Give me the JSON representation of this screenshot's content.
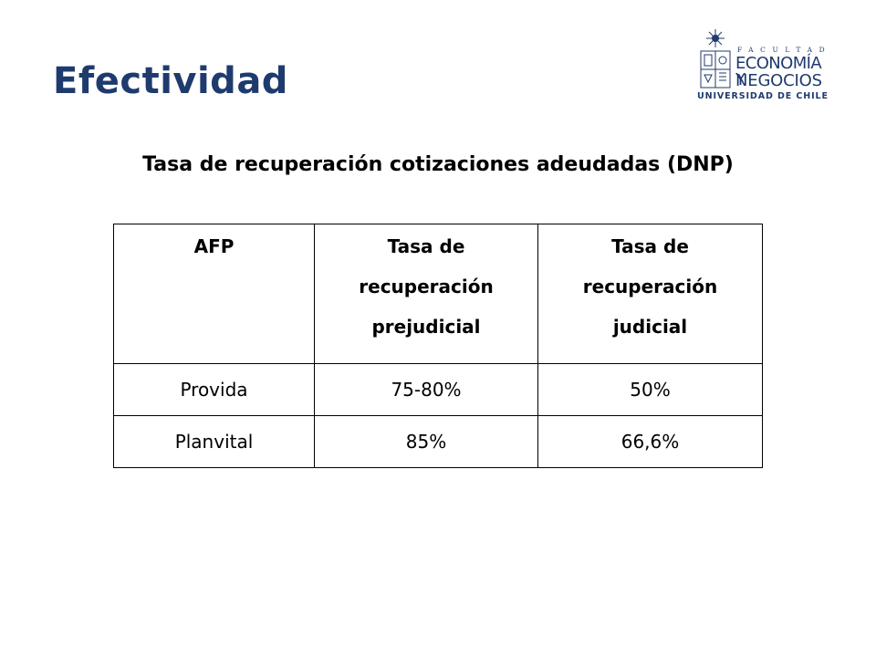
{
  "slide": {
    "title": "Efectividad",
    "subtitle": "Tasa de recuperación cotizaciones adeudadas (DNP)"
  },
  "logo": {
    "faculty": "FACULTAD",
    "line1": "ECONOMÍA Y",
    "line2": "NEGOCIOS",
    "line3": "UNIVERSIDAD DE CHILE"
  },
  "table": {
    "headers": [
      "AFP",
      "Tasa de recuperación prejudicial",
      "Tasa de recuperación judicial"
    ],
    "rows": [
      [
        "Provida",
        "75-80%",
        "50%"
      ],
      [
        "Planvital",
        "85%",
        "66,6%"
      ]
    ]
  },
  "colors": {
    "title": "#1f3b6e",
    "logo": "#1f3b6e"
  }
}
